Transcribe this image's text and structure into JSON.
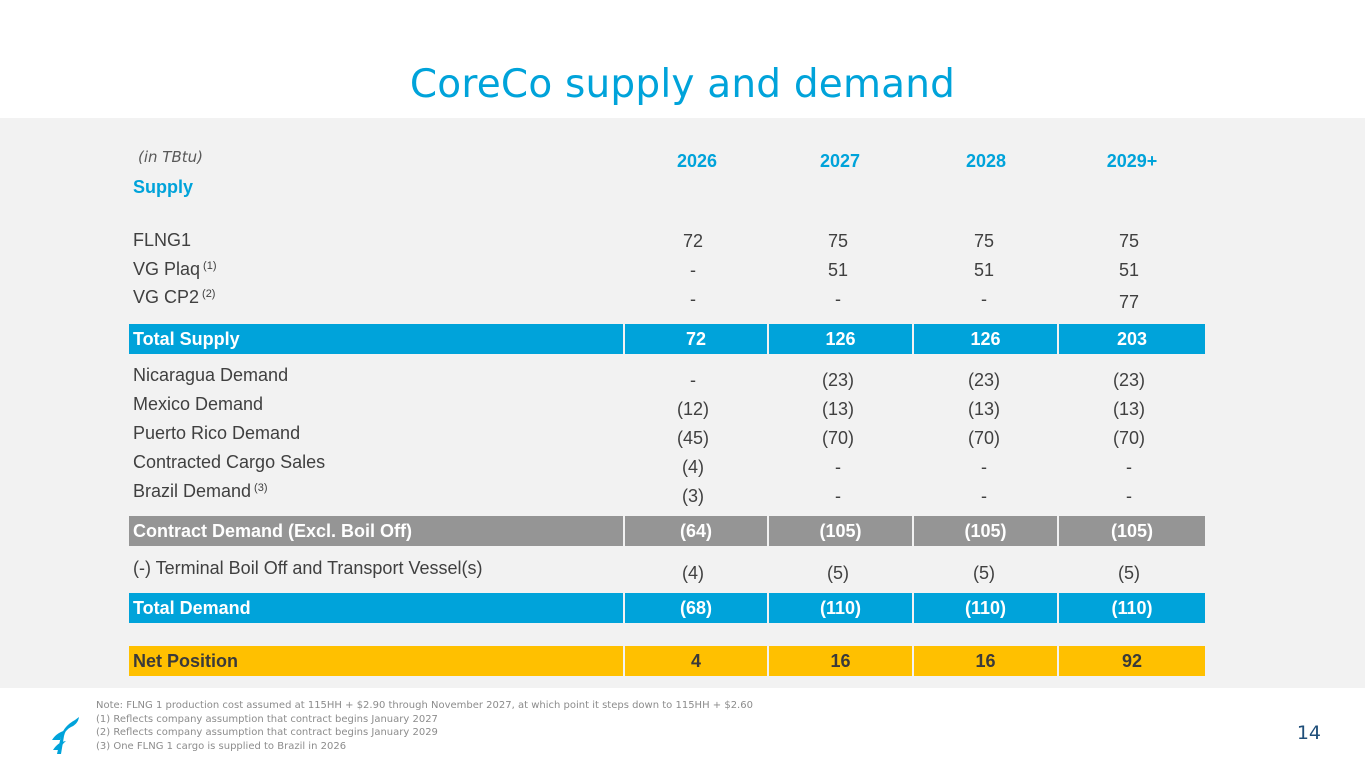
{
  "title": "CoreCo supply and demand",
  "units": "(in TBtu)",
  "years": [
    "2026",
    "2027",
    "2028",
    "2029+"
  ],
  "supply_header": "Supply",
  "supply_rows": [
    {
      "label": "FLNG1",
      "note": "",
      "values": [
        "72",
        "75",
        "75",
        "75"
      ]
    },
    {
      "label": "VG Plaq",
      "note": "(1)",
      "values": [
        "-",
        "51",
        "51",
        "51"
      ]
    },
    {
      "label": "VG CP2",
      "note": "(2)",
      "values": [
        "-",
        "-",
        "-",
        "77"
      ]
    }
  ],
  "total_supply": {
    "label": "Total Supply",
    "values": [
      "72",
      "126",
      "126",
      "203"
    ]
  },
  "demand_rows": [
    {
      "label": "Nicaragua Demand",
      "note": "",
      "values": [
        "-",
        "(23)",
        "(23)",
        "(23)"
      ]
    },
    {
      "label": "Mexico Demand",
      "note": "",
      "values": [
        "(12)",
        "(13)",
        "(13)",
        "(13)"
      ]
    },
    {
      "label": "Puerto Rico Demand",
      "note": "",
      "values": [
        "(45)",
        "(70)",
        "(70)",
        "(70)"
      ]
    },
    {
      "label": "Contracted Cargo Sales",
      "note": "",
      "values": [
        "(4)",
        "-",
        "-",
        "-"
      ]
    },
    {
      "label": "Brazil Demand",
      "note": "(3)",
      "values": [
        "(3)",
        "-",
        "-",
        "-"
      ]
    }
  ],
  "contract_demand": {
    "label": "Contract Demand (Excl. Boil Off)",
    "values": [
      "(64)",
      "(105)",
      "(105)",
      "(105)"
    ]
  },
  "boil_off": {
    "label": "(-) Terminal Boil Off and Transport Vessel(s)",
    "values": [
      "(4)",
      "(5)",
      "(5)",
      "(5)"
    ]
  },
  "total_demand": {
    "label": "Total Demand",
    "values": [
      "(68)",
      "(110)",
      "(110)",
      "(110)"
    ]
  },
  "net_position": {
    "label": "Net Position",
    "values": [
      "4",
      "16",
      "16",
      "92"
    ]
  },
  "notes": [
    "Note: FLNG 1 production cost assumed at 115HH + $2.90 through November 2027, at which point it steps down to 115HH + $2.60",
    "(1)  Reflects company assumption that contract begins January 2027",
    "(2)  Reflects company assumption that contract begins January 2029",
    "(3)  One FLNG 1 cargo is supplied to Brazil in 2026"
  ],
  "page_number": "14",
  "colors": {
    "accent_blue": "#00A3DA",
    "band_gray": "#959595",
    "net_gold": "#FFC000"
  }
}
